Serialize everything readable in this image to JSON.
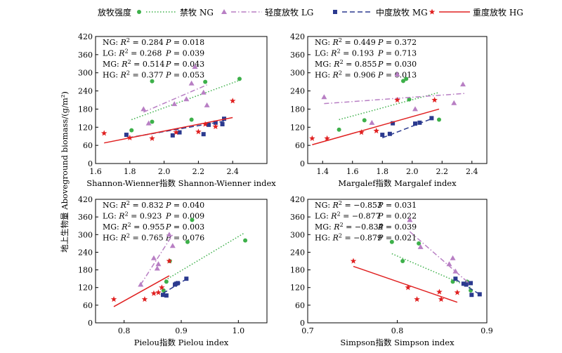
{
  "figure": {
    "ylabel": "地上生物量 Aboveground biomass/(g/m²)",
    "legend": {
      "title": "放牧强度",
      "items": [
        {
          "key": "NG",
          "label": "禁牧 NG",
          "color": "#3db04a",
          "marker": "circle",
          "dash": "dotted"
        },
        {
          "key": "LG",
          "label": "轻度放牧 LG",
          "color": "#b87fc4",
          "marker": "triangle",
          "dash": "dashdot"
        },
        {
          "key": "MG",
          "label": "中度放牧 MG",
          "color": "#2b3a8f",
          "marker": "square",
          "dash": "dashed"
        },
        {
          "key": "HG",
          "label": "重度放牧 HG",
          "color": "#e02020",
          "marker": "star",
          "dash": "solid"
        }
      ]
    }
  },
  "chart_data": [
    {
      "type": "scatter",
      "xlabel": "Shannon-Wienner指数 Shannon-Wienner index",
      "xlim": [
        1.6,
        2.6
      ],
      "xticks": [
        1.6,
        1.8,
        2.0,
        2.2,
        2.4
      ],
      "ylim": [
        0,
        420
      ],
      "yticks": [
        0,
        60,
        120,
        180,
        240,
        300,
        360,
        420
      ],
      "stats": [
        {
          "name": "NG",
          "r2": "0.284",
          "p": "0.018"
        },
        {
          "name": "LG",
          "r2": "0.268",
          "p": "0.039"
        },
        {
          "name": "MG",
          "r2": "0.514",
          "p": "0.043"
        },
        {
          "name": "HG",
          "r2": "0.377",
          "p": "0.053"
        }
      ],
      "series": [
        {
          "name": "NG",
          "points": [
            [
              1.81,
              110
            ],
            [
              1.93,
              138
            ],
            [
              1.93,
              272
            ],
            [
              2.16,
              145
            ],
            [
              2.24,
              270
            ],
            [
              2.44,
              280
            ]
          ],
          "fit": [
            [
              1.81,
              145
            ],
            [
              2.44,
              275
            ]
          ]
        },
        {
          "name": "LG",
          "points": [
            [
              1.88,
              180
            ],
            [
              1.91,
              133
            ],
            [
              2.06,
              197
            ],
            [
              2.13,
              213
            ],
            [
              2.16,
              265
            ],
            [
              2.18,
              320
            ],
            [
              2.23,
              235
            ],
            [
              2.25,
              193
            ]
          ],
          "fit": [
            [
              1.88,
              170
            ],
            [
              2.25,
              260
            ]
          ]
        },
        {
          "name": "MG",
          "points": [
            [
              1.78,
              95
            ],
            [
              2.05,
              93
            ],
            [
              2.09,
              103
            ],
            [
              2.23,
              97
            ],
            [
              2.26,
              128
            ],
            [
              2.3,
              135
            ],
            [
              2.34,
              130
            ],
            [
              2.35,
              148
            ]
          ],
          "fit": [
            [
              1.79,
              85
            ],
            [
              2.35,
              140
            ]
          ]
        },
        {
          "name": "HG",
          "points": [
            [
              1.65,
              100
            ],
            [
              1.8,
              85
            ],
            [
              1.93,
              83
            ],
            [
              2.07,
              103
            ],
            [
              2.2,
              105
            ],
            [
              2.24,
              130
            ],
            [
              2.3,
              122
            ],
            [
              2.4,
              207
            ]
          ],
          "fit": [
            [
              1.65,
              68
            ],
            [
              2.4,
              152
            ]
          ]
        }
      ]
    },
    {
      "type": "scatter",
      "xlabel": "Margalef指数 Margalef index",
      "xlim": [
        1.3,
        2.5
      ],
      "xticks": [
        1.4,
        1.6,
        1.8,
        2.0,
        2.2,
        2.4
      ],
      "ylim": [
        0,
        420
      ],
      "yticks": [
        0,
        60,
        120,
        180,
        240,
        300,
        360,
        420
      ],
      "stats": [
        {
          "name": "NG",
          "r2": "0.449",
          "p": "0.372"
        },
        {
          "name": "LG",
          "r2": "0.193",
          "p": "0.713"
        },
        {
          "name": "MG",
          "r2": "0.855",
          "p": "0.030"
        },
        {
          "name": "HG",
          "r2": "0.906",
          "p": "0.013"
        }
      ],
      "series": [
        {
          "name": "NG",
          "points": [
            [
              1.51,
              112
            ],
            [
              1.68,
              143
            ],
            [
              1.94,
              273
            ],
            [
              1.96,
              280
            ],
            [
              1.98,
              212
            ],
            [
              2.18,
              145
            ]
          ],
          "fit": [
            [
              1.51,
              145
            ],
            [
              2.18,
              235
            ]
          ]
        },
        {
          "name": "LG",
          "points": [
            [
              1.41,
              220
            ],
            [
              1.73,
              135
            ],
            [
              1.9,
              295
            ],
            [
              2.02,
              180
            ],
            [
              2.28,
              200
            ],
            [
              2.34,
              262
            ]
          ],
          "fit": [
            [
              1.41,
              198
            ],
            [
              2.36,
              232
            ]
          ]
        },
        {
          "name": "MG",
          "points": [
            [
              1.8,
              95
            ],
            [
              1.85,
              98
            ],
            [
              1.87,
              133
            ],
            [
              2.02,
              132
            ],
            [
              2.05,
              135
            ],
            [
              2.13,
              150
            ]
          ],
          "fit": [
            [
              1.8,
              85
            ],
            [
              2.13,
              148
            ]
          ]
        },
        {
          "name": "HG",
          "points": [
            [
              1.33,
              83
            ],
            [
              1.43,
              83
            ],
            [
              1.66,
              103
            ],
            [
              1.76,
              108
            ],
            [
              1.9,
              210
            ],
            [
              2.15,
              210
            ]
          ],
          "fit": [
            [
              1.33,
              62
            ],
            [
              2.18,
              180
            ]
          ]
        }
      ]
    },
    {
      "type": "scatter",
      "xlabel": "Pielou指数 Pielou index",
      "xlim": [
        0.75,
        1.05
      ],
      "xticks": [
        0.8,
        0.9,
        1.0
      ],
      "ylim": [
        0,
        420
      ],
      "yticks": [
        0,
        60,
        120,
        180,
        240,
        300,
        360,
        420
      ],
      "stats": [
        {
          "name": "NG",
          "r2": "0.832",
          "p": "0.040"
        },
        {
          "name": "LG",
          "r2": "0.923",
          "p": "0.009"
        },
        {
          "name": "MG",
          "r2": "0.955",
          "p": "0.003"
        },
        {
          "name": "HG",
          "r2": "0.765",
          "p": "0.076"
        }
      ],
      "series": [
        {
          "name": "NG",
          "points": [
            [
              0.869,
              110
            ],
            [
              0.874,
              140
            ],
            [
              0.88,
              210
            ],
            [
              0.911,
              275
            ],
            [
              0.919,
              350
            ],
            [
              1.012,
              280
            ]
          ],
          "fit": [
            [
              0.872,
              145
            ],
            [
              1.01,
              305
            ]
          ]
        },
        {
          "name": "LG",
          "points": [
            [
              0.829,
              130
            ],
            [
              0.852,
              220
            ],
            [
              0.858,
              185
            ],
            [
              0.86,
              200
            ],
            [
              0.885,
              262
            ],
            [
              0.879,
              300
            ]
          ],
          "fit": [
            [
              0.829,
              130
            ],
            [
              0.885,
              300
            ]
          ]
        },
        {
          "name": "MG",
          "points": [
            [
              0.868,
              95
            ],
            [
              0.874,
              93
            ],
            [
              0.889,
              130
            ],
            [
              0.891,
              133
            ],
            [
              0.894,
              135
            ],
            [
              0.909,
              150
            ]
          ],
          "fit": [
            [
              0.868,
              100
            ],
            [
              0.91,
              150
            ]
          ]
        },
        {
          "name": "HG",
          "points": [
            [
              0.782,
              80
            ],
            [
              0.836,
              80
            ],
            [
              0.852,
              100
            ],
            [
              0.86,
              103
            ],
            [
              0.866,
              120
            ],
            [
              0.879,
              210
            ]
          ],
          "fit": [
            [
              0.782,
              55
            ],
            [
              0.879,
              160
            ]
          ]
        }
      ]
    },
    {
      "type": "scatter",
      "xlabel": "Simpson指数 Simpson index",
      "xlim": [
        0.7,
        0.9
      ],
      "xticks": [
        0.7,
        0.8,
        0.9
      ],
      "ylim": [
        0,
        420
      ],
      "yticks": [
        0,
        60,
        120,
        180,
        240,
        300,
        360,
        420
      ],
      "stats": [
        {
          "name": "NG",
          "r2": "−0.853",
          "p": "0.031"
        },
        {
          "name": "LG",
          "r2": "−0.877",
          "p": "0.022"
        },
        {
          "name": "MG",
          "r2": "−0.834",
          "p": "0.039"
        },
        {
          "name": "HG",
          "r2": "−0.879",
          "p": "0.021"
        }
      ],
      "series": [
        {
          "name": "NG",
          "points": [
            [
              0.794,
              275
            ],
            [
              0.806,
              210
            ],
            [
              0.824,
              270
            ],
            [
              0.862,
              140
            ],
            [
              0.878,
              140
            ],
            [
              0.882,
              110
            ]
          ],
          "fit": [
            [
              0.794,
              235
            ],
            [
              0.882,
              120
            ]
          ]
        },
        {
          "name": "LG",
          "points": [
            [
              0.814,
              350
            ],
            [
              0.826,
              258
            ],
            [
              0.858,
              200
            ],
            [
              0.862,
              220
            ],
            [
              0.865,
              175
            ],
            [
              0.878,
              135
            ]
          ],
          "fit": [
            [
              0.814,
              310
            ],
            [
              0.878,
              140
            ]
          ]
        },
        {
          "name": "MG",
          "points": [
            [
              0.865,
              150
            ],
            [
              0.874,
              133
            ],
            [
              0.877,
              130
            ],
            [
              0.882,
              135
            ],
            [
              0.883,
              95
            ],
            [
              0.892,
              97
            ]
          ],
          "fit": [
            [
              0.865,
              148
            ],
            [
              0.893,
              95
            ]
          ]
        },
        {
          "name": "HG",
          "points": [
            [
              0.751,
              210
            ],
            [
              0.812,
              120
            ],
            [
              0.822,
              80
            ],
            [
              0.847,
              105
            ],
            [
              0.849,
              80
            ],
            [
              0.867,
              103
            ]
          ],
          "fit": [
            [
              0.751,
              192
            ],
            [
              0.867,
              70
            ]
          ]
        }
      ]
    }
  ]
}
